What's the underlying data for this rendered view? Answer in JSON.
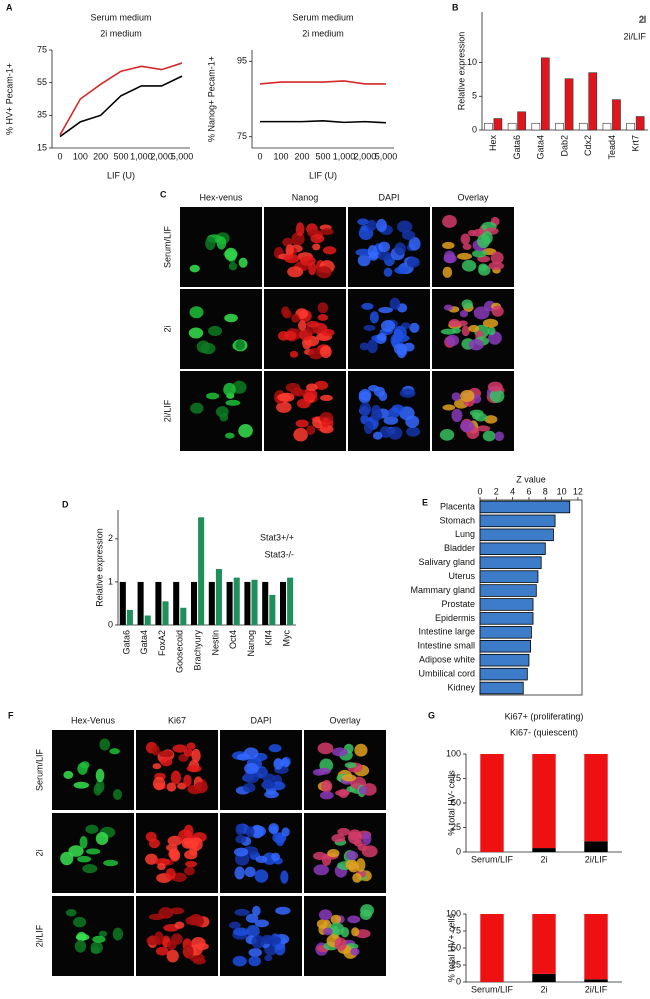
{
  "chart_data": [
    {
      "panel": "A",
      "type": "line",
      "categories": [
        "0",
        "100",
        "200",
        "500",
        "1,000",
        "2,000",
        "5,000"
      ],
      "series": [
        {
          "name": "Serum medium",
          "color": "#000000",
          "values": [
            22,
            31,
            35,
            47,
            53,
            53,
            59
          ]
        },
        {
          "name": "2i medium",
          "color": "#d42a2a",
          "values": [
            23,
            45,
            54,
            62,
            65,
            63,
            67
          ]
        }
      ],
      "xlabel": "LIF (U)",
      "ylabel": "% HV+ Pecam-1+",
      "ylim": [
        15,
        75
      ],
      "yticks": [
        15,
        35,
        55,
        75
      ]
    },
    {
      "type": "line",
      "categories": [
        "0",
        "100",
        "200",
        "500",
        "1,000",
        "2,000",
        "5,000"
      ],
      "series": [
        {
          "name": "Serum medium",
          "color": "#000000",
          "values": [
            79,
            79,
            79,
            79.2,
            78.8,
            79,
            78.7
          ]
        },
        {
          "name": "2i medium",
          "color": "#d42a2a",
          "values": [
            89,
            89.5,
            89.5,
            89.5,
            89.8,
            89,
            89
          ]
        }
      ],
      "xlabel": "LIF (U)",
      "ylabel": "% Nanog+ Pecam-1+",
      "ylim": [
        72,
        98
      ],
      "yticks": [
        75,
        95
      ]
    },
    {
      "panel": "B",
      "type": "bar",
      "categories": [
        "Hex",
        "Gata6",
        "Gata4",
        "Dab2",
        "Cdx2",
        "Tead4",
        "Krt7"
      ],
      "series": [
        {
          "name": "2i",
          "color": "#ffffff",
          "values": [
            1,
            1,
            1,
            1,
            1,
            1,
            1
          ]
        },
        {
          "name": "2i/LIF",
          "color": "#e0161c",
          "values": [
            1.7,
            2.7,
            10.7,
            7.6,
            8.5,
            4.5,
            2
          ]
        }
      ],
      "edgecolor": "#333333",
      "legend": "upper right",
      "ylabel": "Relative expression",
      "ylim": [
        0,
        17.5
      ],
      "yticks": [
        0,
        5,
        10
      ]
    },
    {
      "panel": "D",
      "type": "bar",
      "categories": [
        "Gata6",
        "Gata4",
        "FoxA2",
        "Goosecoid",
        "Brachyury",
        "Nestin",
        "Oct4",
        "Nanog",
        "Klf4",
        "Myc"
      ],
      "series": [
        {
          "name": "Stat3+/+",
          "color": "#000000",
          "values": [
            1,
            1,
            1,
            1,
            1,
            1,
            1,
            1,
            1,
            1
          ]
        },
        {
          "name": "Stat3-/-",
          "color": "#1f8f5c",
          "values": [
            0.35,
            0.22,
            0.55,
            0.4,
            2.5,
            1.3,
            1.1,
            1.05,
            0.7,
            1.1
          ]
        }
      ],
      "legend": "upper right",
      "ylabel": "Relative expression",
      "ylim": [
        0,
        2.67
      ],
      "yticks": [
        0,
        1,
        2
      ]
    },
    {
      "panel": "E",
      "type": "bar",
      "orientation": "horizontal",
      "title": "Z value",
      "categories": [
        "Placenta",
        "Stomach",
        "Lung",
        "Bladder",
        "Salivary gland",
        "Uterus",
        "Mammary gland",
        "Prostate",
        "Epidermis",
        "Intestine large",
        "Intestine small",
        "Adipose white",
        "Umbilical cord",
        "Kidney"
      ],
      "values": [
        11,
        9.2,
        9,
        8,
        7.5,
        7.1,
        6.9,
        6.5,
        6.5,
        6.3,
        6.2,
        6,
        5.8,
        5.3
      ],
      "color": "#3d7cc9",
      "edgecolor": "#000000",
      "xlim": [
        0,
        12.5
      ],
      "xticks": [
        0,
        2,
        4,
        6,
        8,
        10,
        12
      ]
    },
    {
      "panel": "G",
      "type": "bar",
      "stacked": true,
      "categories": [
        "Serum/LIF",
        "2i",
        "2i/LIF"
      ],
      "series": [
        {
          "name": "Ki67- (quiescent)",
          "color": "#000000",
          "values": [
            0,
            4,
            11
          ]
        },
        {
          "name": "Ki67+ (proliferating)",
          "color": "#ee1111",
          "values": [
            100,
            96,
            89
          ]
        }
      ],
      "legend": "top",
      "ylabel": "% total HV- cells",
      "ylim": [
        0,
        100
      ],
      "yticks": [
        0,
        25,
        50,
        75,
        100
      ]
    },
    {
      "type": "bar",
      "stacked": true,
      "categories": [
        "Serum/LIF",
        "2i",
        "2i/LIF"
      ],
      "series": [
        {
          "color": "#000000",
          "values": [
            0,
            12,
            4
          ]
        },
        {
          "color": "#ee1111",
          "values": [
            100,
            88,
            96
          ]
        }
      ],
      "ylabel": "% total HV+ cells",
      "ylim": [
        0,
        100
      ],
      "yticks": [
        0,
        25,
        50,
        75,
        100
      ]
    }
  ],
  "image_panels": [
    {
      "label": "C",
      "columns": [
        "Hex-venus",
        "Nanog",
        "DAPI",
        "Overlay"
      ],
      "rows": [
        "Serum/LIF",
        "2i",
        "2i/LIF"
      ]
    },
    {
      "label": "F",
      "columns": [
        "Hex-Venus",
        "Ki67",
        "DAPI",
        "Overlay"
      ],
      "rows": [
        "Serum/LIF",
        "2i",
        "2i/LIF"
      ]
    }
  ]
}
